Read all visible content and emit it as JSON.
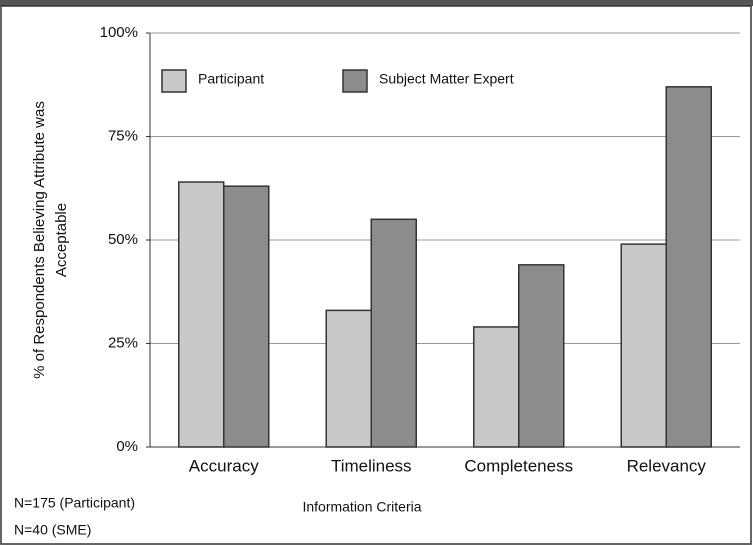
{
  "chart_data": {
    "type": "bar",
    "y_label": [
      "% of Respondents Believing Attribute was",
      "Acceptable"
    ],
    "x_label": "Information Criteria",
    "categories": [
      "Accuracy",
      "Timeliness",
      "Completeness",
      "Relevancy"
    ],
    "series": [
      {
        "name": "Participant",
        "color": "#c9c9c9",
        "values": [
          64,
          33,
          29,
          49
        ]
      },
      {
        "name": "Subject Matter Expert",
        "color": "#8c8c8c",
        "values": [
          63,
          55,
          44,
          87
        ]
      }
    ],
    "ylim": [
      0,
      100
    ],
    "yticks": [
      {
        "value": 0,
        "label": "0%"
      },
      {
        "value": 25,
        "label": "25%"
      },
      {
        "value": 50,
        "label": "50%"
      },
      {
        "value": 75,
        "label": "75%"
      },
      {
        "value": 100,
        "label": "100%"
      }
    ],
    "grid": true,
    "legend": "top-left",
    "notes": [
      "N=175 (Participant)",
      "N=40 (SME)"
    ]
  }
}
